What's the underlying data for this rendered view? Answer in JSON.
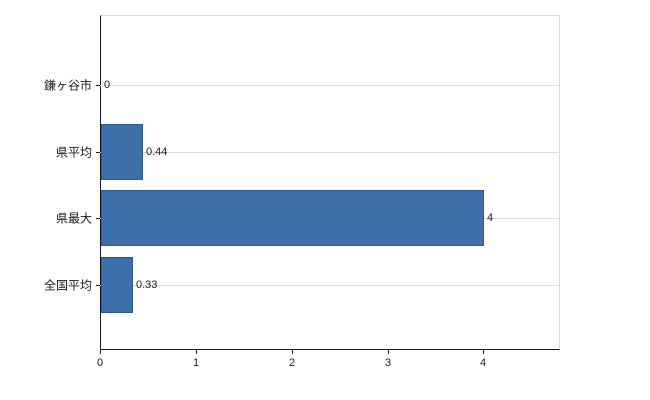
{
  "chart_data": {
    "type": "bar",
    "orientation": "horizontal",
    "title": "",
    "xlabel": "",
    "ylabel": "",
    "categories": [
      "鎌ヶ谷市",
      "県平均",
      "県最大",
      "全国平均"
    ],
    "values": [
      0,
      0.44,
      4,
      0.33
    ],
    "value_labels": [
      "0",
      "0.44",
      "4",
      "0.33"
    ],
    "xlim": [
      0,
      4.8
    ],
    "x_ticks": [
      0,
      1,
      2,
      3,
      4
    ],
    "grid": "horizontal-lines-at-categories",
    "legend": "none",
    "bar_color": "#3d6fa8",
    "bar_border_color": "#2d5a8e",
    "gridline_color": "#dcdcdc",
    "axis_color": "#1a1a1a",
    "background_color": "#ffffff"
  }
}
